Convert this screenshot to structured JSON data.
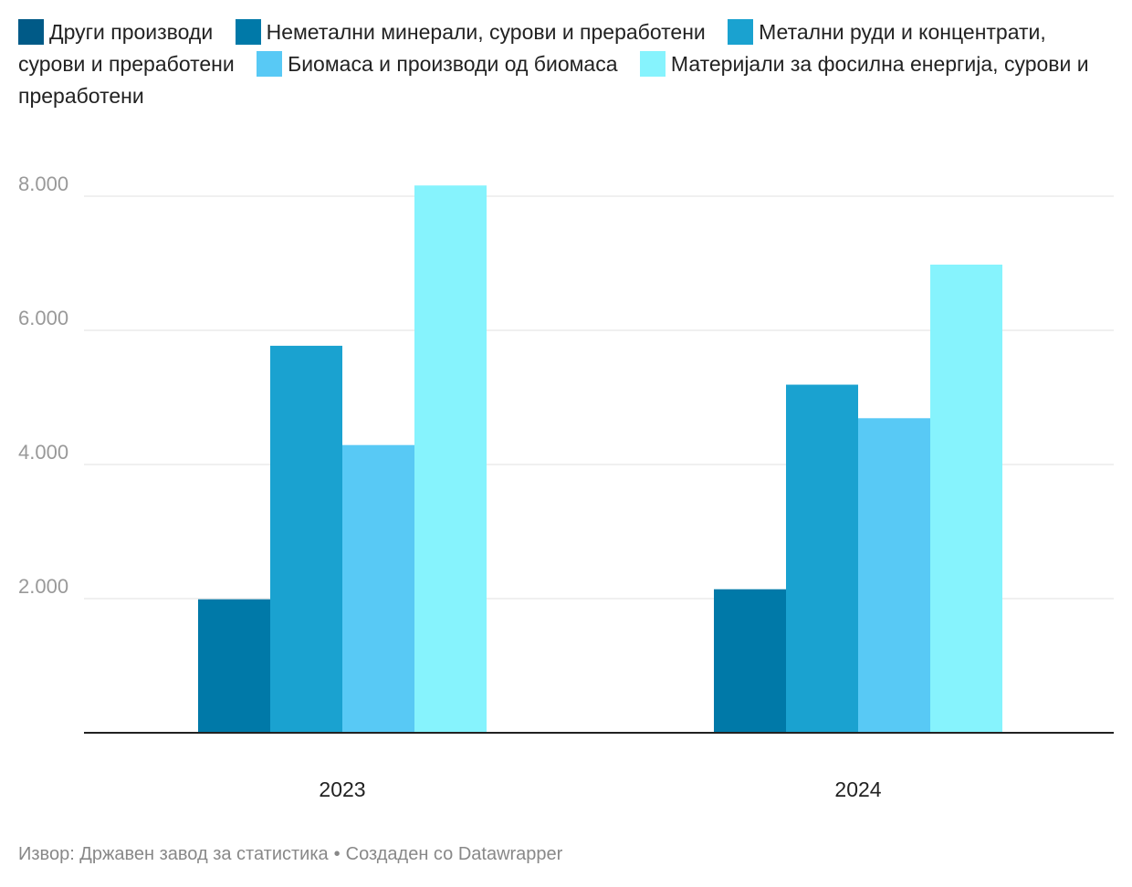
{
  "colors": {
    "background": "#ffffff",
    "grid": "#e2e2e2",
    "baseline": "#222222",
    "tick_text": "#999999",
    "category_text": "#222222",
    "footer_text": "#888888"
  },
  "legend": [
    {
      "name": "Други производи",
      "color": "#005a87"
    },
    {
      "name": "Неметални минерали, сурови и преработени",
      "color": "#0079a8"
    },
    {
      "name": "Метални руди и концентрати, сурови и преработени",
      "color": "#1aa2d0"
    },
    {
      "name": "Биомаса и производи од биомаса",
      "color": "#58c9f5"
    },
    {
      "name": "Материјали за фосилна енергија, сурови и преработени",
      "color": "#86f3fd"
    }
  ],
  "chart_data": {
    "type": "bar",
    "categories": [
      "2023",
      "2024"
    ],
    "series": [
      {
        "name": "Други производи",
        "color": "#005a87",
        "values": [
          null,
          null
        ]
      },
      {
        "name": "Неметални минерали, сурови и преработени",
        "color": "#0079a8",
        "values": [
          1990,
          2140
        ]
      },
      {
        "name": "Метални руди и концентрати, сурови и преработени",
        "color": "#1aa2d0",
        "values": [
          5770,
          5190
        ]
      },
      {
        "name": "Биомаса и производи од биомаса",
        "color": "#58c9f5",
        "values": [
          4290,
          4690
        ]
      },
      {
        "name": "Материјали за фосилна енергија, сурови и преработени",
        "color": "#86f3fd",
        "values": [
          8160,
          6980
        ]
      }
    ],
    "ylim": [
      0,
      8200
    ],
    "yticks": [
      2000,
      4000,
      6000,
      8000
    ],
    "ytick_labels": [
      "2.000",
      "4.000",
      "6.000",
      "8.000"
    ],
    "grid": true,
    "legend_position": "top",
    "xlabel": "",
    "ylabel": ""
  },
  "footer": {
    "source": "Извор: Државен завод за статистика",
    "separator": "•",
    "credit": "Создаден со Datawrapper"
  }
}
